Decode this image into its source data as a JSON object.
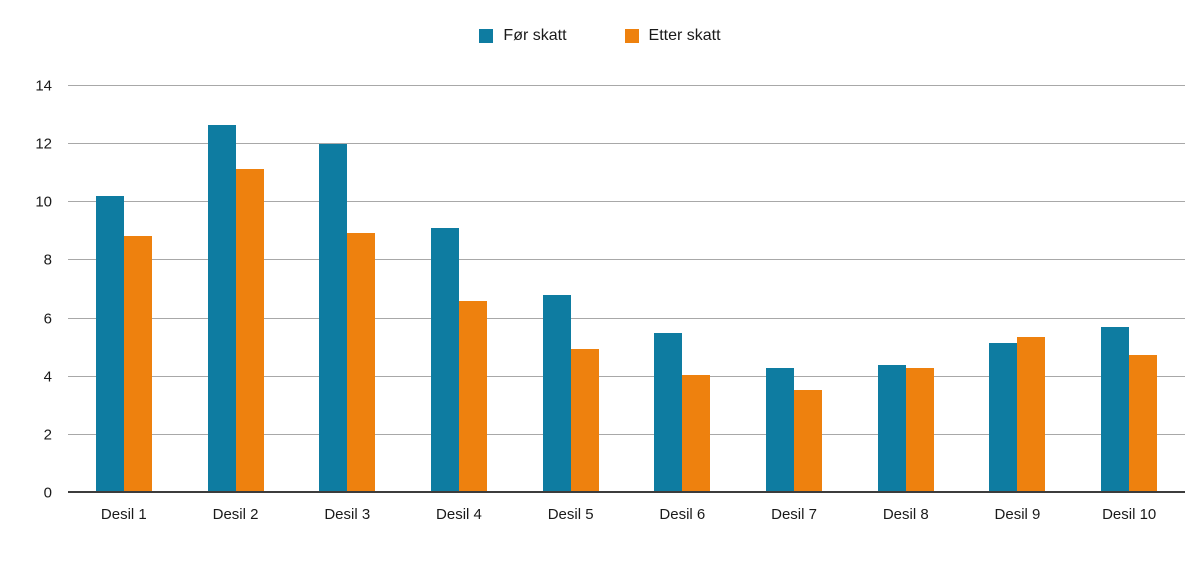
{
  "chart_data": {
    "type": "bar",
    "title": "",
    "xlabel": "",
    "ylabel": "",
    "categories": [
      "Desil 1",
      "Desil 2",
      "Desil 3",
      "Desil 4",
      "Desil 5",
      "Desil 6",
      "Desil 7",
      "Desil 8",
      "Desil 9",
      "Desil 10"
    ],
    "series": [
      {
        "name": "Før skatt",
        "color": "#0e7ca1",
        "values": [
          10.2,
          12.65,
          12.0,
          9.1,
          6.8,
          5.5,
          4.3,
          4.4,
          5.15,
          5.7
        ]
      },
      {
        "name": "Etter skatt",
        "color": "#ee810e",
        "values": [
          8.85,
          11.15,
          8.95,
          6.6,
          4.95,
          4.05,
          3.55,
          4.3,
          5.35,
          4.75
        ]
      }
    ],
    "ylim": [
      0,
      14
    ],
    "yticks": [
      0,
      2,
      4,
      6,
      8,
      10,
      12,
      14
    ],
    "grid": true,
    "legend_position": "top"
  }
}
